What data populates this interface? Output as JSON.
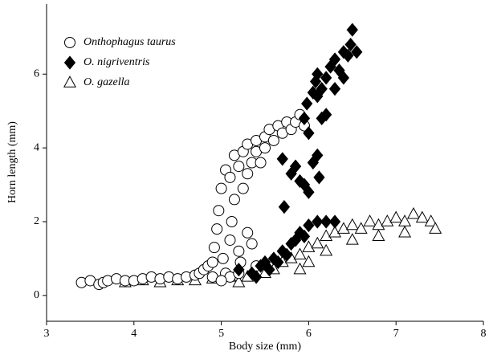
{
  "chart_data": {
    "type": "scatter",
    "x_label": "Body size (mm)",
    "y_label": "Horn length (mm)",
    "xlim": [
      3,
      8
    ],
    "ylim": [
      -0.7,
      7.9
    ],
    "xticks": [
      3,
      4,
      5,
      6,
      7,
      8
    ],
    "yticks": [
      0,
      2,
      4,
      6
    ],
    "legend": "upper left",
    "series": [
      {
        "name": "Onthophagus taurus",
        "marker": "circle",
        "color": "#000000",
        "fill": "#ffffff",
        "x": [
          3.4,
          3.5,
          3.6,
          3.65,
          3.7,
          3.8,
          3.9,
          4.0,
          4.1,
          4.2,
          4.3,
          4.4,
          4.5,
          4.6,
          4.7,
          4.75,
          4.8,
          4.85,
          4.9,
          4.92,
          4.95,
          4.97,
          5.0,
          5.02,
          5.05,
          5.05,
          5.1,
          5.1,
          5.12,
          5.15,
          5.15,
          5.2,
          5.2,
          5.22,
          5.25,
          5.25,
          5.3,
          5.3,
          5.3,
          5.35,
          5.35,
          5.4,
          5.4,
          5.45,
          5.5,
          5.5,
          5.55,
          5.6,
          5.65,
          5.7,
          5.75,
          5.8,
          5.85,
          5.9,
          5.95,
          5.4,
          5.1,
          4.9,
          5.0,
          5.2
        ],
        "y": [
          0.35,
          0.4,
          0.3,
          0.35,
          0.4,
          0.45,
          0.4,
          0.4,
          0.45,
          0.5,
          0.45,
          0.5,
          0.45,
          0.5,
          0.55,
          0.6,
          0.7,
          0.8,
          0.9,
          1.3,
          1.8,
          2.3,
          2.9,
          1.0,
          0.6,
          3.4,
          3.2,
          1.5,
          2.0,
          3.8,
          2.6,
          3.5,
          1.2,
          0.9,
          3.9,
          2.9,
          4.1,
          3.3,
          1.7,
          1.4,
          3.6,
          4.2,
          3.9,
          3.6,
          4.3,
          4.0,
          4.5,
          4.2,
          4.6,
          4.4,
          4.7,
          4.5,
          4.7,
          4.9,
          4.6,
          0.8,
          0.5,
          0.5,
          0.4,
          0.6
        ]
      },
      {
        "name": "O. nigriventris",
        "marker": "diamond",
        "color": "#000000",
        "fill": "#000000",
        "x": [
          5.2,
          5.35,
          5.4,
          5.45,
          5.5,
          5.55,
          5.6,
          5.65,
          5.7,
          5.75,
          5.8,
          5.85,
          5.9,
          5.95,
          6.0,
          6.1,
          6.2,
          6.3,
          5.72,
          5.8,
          5.85,
          5.9,
          5.95,
          6.0,
          6.0,
          5.95,
          6.05,
          6.1,
          6.12,
          6.15,
          6.2,
          5.98,
          6.05,
          6.08,
          6.1,
          6.15,
          6.2,
          6.25,
          6.3,
          6.35,
          6.4,
          6.45,
          6.5,
          6.55,
          6.48,
          6.4,
          6.3,
          6.1,
          5.7
        ],
        "y": [
          0.7,
          0.6,
          0.5,
          0.8,
          0.9,
          0.7,
          1.0,
          0.9,
          1.2,
          1.1,
          1.4,
          1.5,
          1.7,
          1.6,
          1.9,
          2.0,
          2.0,
          2.0,
          2.4,
          3.3,
          3.5,
          3.1,
          3.0,
          2.8,
          4.4,
          4.8,
          3.6,
          3.8,
          3.2,
          4.8,
          4.9,
          5.2,
          5.5,
          5.8,
          6.0,
          5.6,
          5.9,
          6.2,
          6.4,
          6.1,
          6.6,
          6.5,
          7.2,
          6.6,
          6.8,
          5.9,
          5.6,
          5.4,
          3.7
        ]
      },
      {
        "name": "O. gazella",
        "marker": "triangle",
        "color": "#000000",
        "fill": "#ffffff",
        "x": [
          3.9,
          4.1,
          4.3,
          4.5,
          4.7,
          4.9,
          5.1,
          5.3,
          5.5,
          5.6,
          5.7,
          5.8,
          5.9,
          6.0,
          6.1,
          6.2,
          6.3,
          6.4,
          6.5,
          6.6,
          6.7,
          6.8,
          6.9,
          7.0,
          7.1,
          7.2,
          7.3,
          7.4,
          7.45,
          6.2,
          6.5,
          6.8,
          7.1,
          5.9,
          6.0,
          5.2
        ],
        "y": [
          0.35,
          0.4,
          0.35,
          0.4,
          0.4,
          0.45,
          0.5,
          0.5,
          0.6,
          0.7,
          0.9,
          1.0,
          1.1,
          1.3,
          1.4,
          1.6,
          1.7,
          1.8,
          1.9,
          1.8,
          2.0,
          1.9,
          2.0,
          2.1,
          2.0,
          2.2,
          2.1,
          2.0,
          1.8,
          1.2,
          1.5,
          1.6,
          1.7,
          0.7,
          0.9,
          0.35
        ]
      }
    ]
  }
}
